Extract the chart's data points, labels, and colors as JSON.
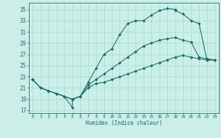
{
  "xlabel": "Humidex (Indice chaleur)",
  "bg_color": "#cceee8",
  "grid_color": "#99ddcc",
  "line_color": "#1a6b6b",
  "xlim": [
    -0.5,
    23.5
  ],
  "ylim": [
    16.5,
    36.2
  ],
  "xticks": [
    0,
    1,
    2,
    3,
    4,
    5,
    6,
    7,
    8,
    9,
    10,
    11,
    12,
    13,
    14,
    15,
    16,
    17,
    18,
    19,
    20,
    21,
    22,
    23
  ],
  "yticks": [
    17,
    19,
    21,
    23,
    25,
    27,
    29,
    31,
    33,
    35
  ],
  "line1_x": [
    0,
    1,
    2,
    3,
    4,
    5,
    5,
    6,
    7,
    8,
    9,
    10,
    11,
    12,
    13,
    14,
    15,
    16,
    17,
    18,
    18,
    19,
    20,
    21,
    22,
    23
  ],
  "line1_y": [
    22.5,
    21.0,
    20.5,
    20.0,
    19.5,
    17.5,
    19.0,
    19.5,
    22.0,
    24.5,
    27.0,
    28.0,
    30.5,
    32.5,
    33.0,
    33.0,
    34.0,
    34.8,
    35.2,
    35.0,
    34.8,
    34.2,
    33.0,
    32.5,
    26.0,
    26.0
  ],
  "line2_x": [
    0,
    1,
    2,
    3,
    4,
    5,
    6,
    7,
    8,
    9,
    10,
    11,
    12,
    13,
    14,
    15,
    16,
    17,
    18,
    19,
    20,
    21,
    22,
    23
  ],
  "line2_y": [
    22.5,
    21.0,
    20.5,
    20.0,
    19.5,
    19.0,
    19.5,
    21.5,
    22.5,
    23.5,
    24.5,
    25.5,
    26.5,
    27.5,
    28.5,
    29.0,
    29.5,
    29.8,
    30.0,
    29.5,
    29.2,
    26.5,
    26.2,
    26.0
  ],
  "line3_x": [
    0,
    1,
    2,
    3,
    4,
    5,
    6,
    7,
    8,
    9,
    10,
    11,
    12,
    13,
    14,
    15,
    16,
    17,
    18,
    19,
    20,
    21,
    22,
    23
  ],
  "line3_y": [
    22.5,
    21.0,
    20.5,
    20.0,
    19.5,
    19.0,
    19.5,
    21.0,
    21.8,
    22.0,
    22.5,
    23.0,
    23.5,
    24.0,
    24.5,
    25.0,
    25.5,
    26.0,
    26.5,
    26.8,
    26.5,
    26.2,
    26.0,
    26.0
  ]
}
